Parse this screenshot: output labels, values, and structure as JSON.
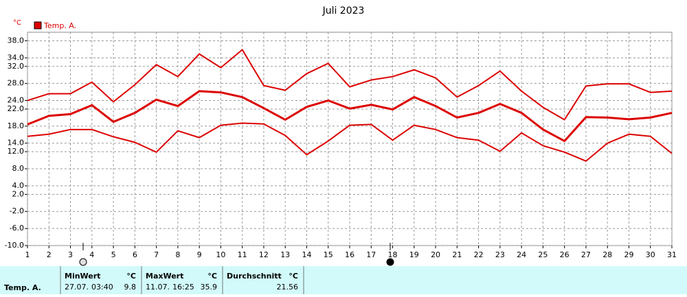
{
  "chart_data": {
    "type": "line",
    "title": "Juli 2023",
    "y_unit": "°C",
    "x": [
      1,
      2,
      3,
      4,
      5,
      6,
      7,
      8,
      9,
      10,
      11,
      12,
      13,
      14,
      15,
      16,
      17,
      18,
      19,
      20,
      21,
      22,
      23,
      24,
      25,
      26,
      27,
      28,
      29,
      30,
      31
    ],
    "xlim": [
      1,
      31
    ],
    "xticks": [
      1,
      2,
      3,
      4,
      5,
      6,
      7,
      8,
      9,
      10,
      11,
      12,
      13,
      14,
      15,
      16,
      17,
      18,
      19,
      20,
      21,
      22,
      23,
      24,
      25,
      26,
      27,
      28,
      29,
      30,
      31
    ],
    "ylim": [
      -10,
      40
    ],
    "yticks": [
      {
        "value": 38,
        "label": "38.0"
      },
      {
        "value": 34,
        "label": "34.0"
      },
      {
        "value": 32,
        "label": "32.0"
      },
      {
        "value": 28,
        "label": "28.0"
      },
      {
        "value": 24,
        "label": "24.0"
      },
      {
        "value": 22,
        "label": "22.0"
      },
      {
        "value": 18,
        "label": "18.0"
      },
      {
        "value": 14,
        "label": "14.0"
      },
      {
        "value": 12,
        "label": "12.0"
      },
      {
        "value": 8,
        "label": "8.0"
      },
      {
        "value": 4,
        "label": "4.0"
      },
      {
        "value": 2,
        "label": "2.0"
      },
      {
        "value": -2,
        "label": "-2.0"
      },
      {
        "value": -6,
        "label": "-6.0"
      },
      {
        "value": -10,
        "label": "-10.0"
      }
    ],
    "grid": true,
    "series": [
      {
        "name": "Temp. A.",
        "color": "#dd0000",
        "max": [
          24.0,
          25.6,
          25.6,
          28.3,
          23.7,
          27.7,
          32.4,
          29.6,
          34.9,
          31.7,
          35.9,
          27.5,
          26.4,
          30.3,
          32.7,
          27.2,
          28.8,
          29.6,
          31.2,
          29.3,
          24.8,
          27.5,
          30.9,
          26.2,
          22.4,
          19.5,
          27.4,
          27.9,
          27.9,
          25.9,
          26.2
        ],
        "values": [
          18.4,
          20.4,
          20.8,
          22.9,
          19.0,
          21.1,
          24.2,
          22.7,
          26.2,
          25.9,
          24.8,
          22.2,
          19.5,
          22.5,
          24.0,
          22.1,
          23.0,
          21.9,
          24.8,
          22.7,
          20.0,
          21.1,
          23.2,
          21.1,
          17.2,
          14.5,
          20.1,
          20.0,
          19.6,
          20.0,
          21.1
        ],
        "min": [
          15.6,
          16.1,
          17.2,
          17.2,
          15.5,
          14.2,
          11.9,
          16.9,
          15.3,
          18.2,
          18.7,
          18.5,
          15.8,
          11.3,
          14.5,
          18.2,
          18.4,
          14.7,
          18.2,
          17.2,
          15.3,
          14.7,
          12.1,
          16.4,
          13.4,
          11.9,
          9.8,
          14.0,
          16.1,
          15.6,
          11.6
        ]
      }
    ]
  },
  "table": {
    "row_label": "Temp. A.",
    "columns": [
      {
        "header": "MinWert",
        "unit": "°C",
        "date": "27.07.",
        "time": "03:40",
        "value": 9.8
      },
      {
        "header": "MaxWert",
        "unit": "°C",
        "date": "11.07.",
        "time": "16:25",
        "value": 35.9
      },
      {
        "header": "Durchschnitt",
        "unit": "°C",
        "value": 21.56
      }
    ]
  }
}
